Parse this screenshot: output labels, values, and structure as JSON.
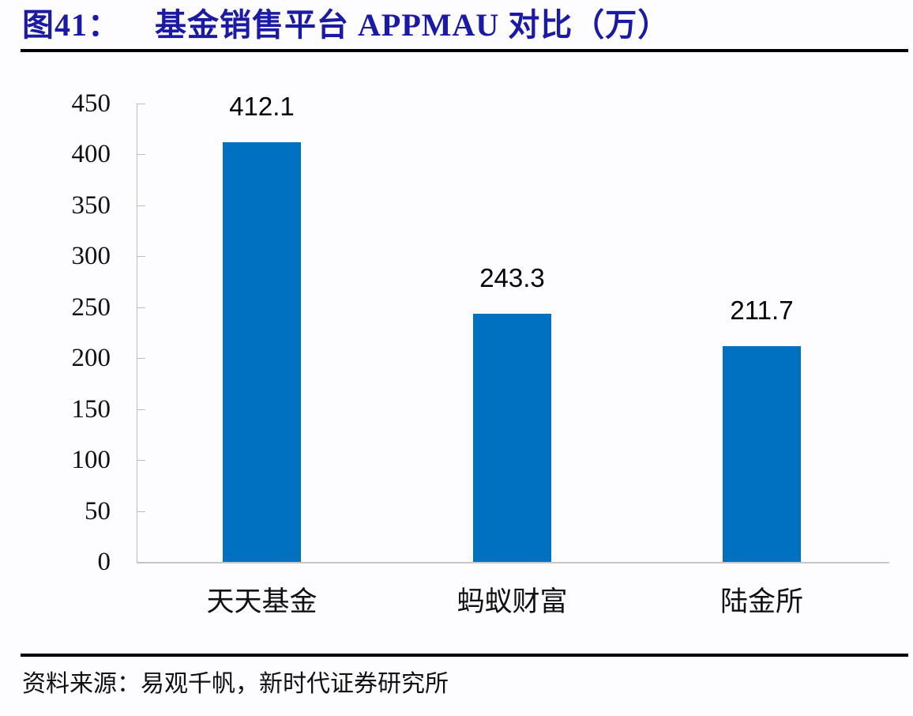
{
  "header": {
    "figure_label": "图41：",
    "title": "基金销售平台 APPMAU 对比（万）"
  },
  "footer": {
    "source": "资料来源：易观千帆，新时代证券研究所"
  },
  "colors": {
    "bar": "#0070c0",
    "title": "#1a1aa6"
  },
  "chart_data": {
    "type": "bar",
    "title": "基金销售平台 APPMAU 对比（万）",
    "xlabel": "",
    "ylabel": "",
    "categories": [
      "天天基金",
      "蚂蚁财富",
      "陆金所"
    ],
    "values": [
      412.1,
      243.3,
      211.7
    ],
    "value_labels": [
      "412.1",
      "243.3",
      "211.7"
    ],
    "ylim": [
      0,
      450
    ],
    "yticks": [
      "0",
      "50",
      "100",
      "150",
      "200",
      "250",
      "300",
      "350",
      "400",
      "450"
    ],
    "grid": false,
    "legend": null
  }
}
